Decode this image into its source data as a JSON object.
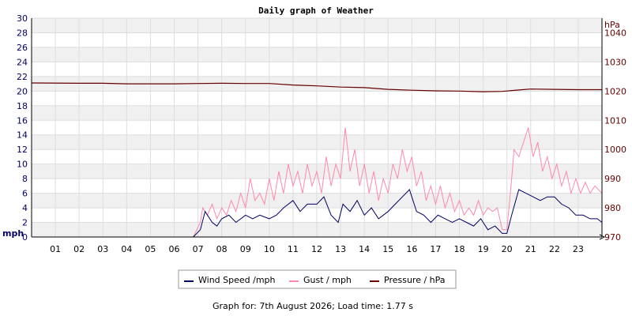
{
  "chart_data": {
    "type": "line",
    "title": "Daily graph of Weather",
    "footer": "Graph for: 7th August 2026; Load time: 1.77 s",
    "x_hours": [
      0,
      24
    ],
    "x_ticks": [
      "01",
      "02",
      "03",
      "04",
      "05",
      "06",
      "07",
      "08",
      "09",
      "10",
      "11",
      "12",
      "13",
      "14",
      "15",
      "16",
      "17",
      "18",
      "19",
      "20",
      "21",
      "22",
      "23"
    ],
    "left_axis": {
      "unit": "mph",
      "ylim": [
        0,
        30
      ],
      "ticks": [
        "0",
        "2",
        "4",
        "6",
        "8",
        "10",
        "12",
        "14",
        "16",
        "18",
        "20",
        "22",
        "24",
        "26",
        "28",
        "30"
      ]
    },
    "right_axis": {
      "unit": "hPa",
      "ylim": [
        970,
        1045
      ],
      "ticks": [
        "970",
        "980",
        "990",
        "1000",
        "1010",
        "1020",
        "1030",
        "1040"
      ]
    },
    "legend_placement": "bottom-center",
    "series": [
      {
        "name": "Wind Speed /mph",
        "color": "#000066",
        "axis": "left",
        "points": [
          [
            0,
            0
          ],
          [
            1,
            0
          ],
          [
            2,
            0
          ],
          [
            3,
            0
          ],
          [
            4,
            0
          ],
          [
            5,
            0
          ],
          [
            6,
            0
          ],
          [
            6.8,
            0
          ],
          [
            7.1,
            1
          ],
          [
            7.3,
            3.5
          ],
          [
            7.6,
            2
          ],
          [
            7.8,
            1.5
          ],
          [
            8,
            2.5
          ],
          [
            8.3,
            3
          ],
          [
            8.6,
            2
          ],
          [
            9,
            3
          ],
          [
            9.3,
            2.5
          ],
          [
            9.6,
            3
          ],
          [
            10,
            2.5
          ],
          [
            10.3,
            3
          ],
          [
            10.6,
            4
          ],
          [
            11,
            5
          ],
          [
            11.3,
            3.5
          ],
          [
            11.6,
            4.5
          ],
          [
            12,
            4.5
          ],
          [
            12.3,
            5.5
          ],
          [
            12.6,
            3
          ],
          [
            12.9,
            2
          ],
          [
            13.1,
            4.5
          ],
          [
            13.4,
            3.5
          ],
          [
            13.7,
            5
          ],
          [
            14,
            3
          ],
          [
            14.3,
            4
          ],
          [
            14.6,
            2.5
          ],
          [
            15,
            3.5
          ],
          [
            15.3,
            4.5
          ],
          [
            15.6,
            5.5
          ],
          [
            15.9,
            6.5
          ],
          [
            16.2,
            3.5
          ],
          [
            16.5,
            3
          ],
          [
            16.8,
            2
          ],
          [
            17.1,
            3
          ],
          [
            17.4,
            2.5
          ],
          [
            17.7,
            2
          ],
          [
            18,
            2.5
          ],
          [
            18.3,
            2
          ],
          [
            18.6,
            1.5
          ],
          [
            18.9,
            2.5
          ],
          [
            19.2,
            1
          ],
          [
            19.5,
            1.5
          ],
          [
            19.8,
            0.5
          ],
          [
            20,
            0.5
          ],
          [
            20.2,
            3
          ],
          [
            20.5,
            6.5
          ],
          [
            20.8,
            6
          ],
          [
            21.1,
            5.5
          ],
          [
            21.4,
            5
          ],
          [
            21.7,
            5.5
          ],
          [
            22,
            5.5
          ],
          [
            22.3,
            4.5
          ],
          [
            22.6,
            4
          ],
          [
            22.9,
            3
          ],
          [
            23.2,
            3
          ],
          [
            23.5,
            2.5
          ],
          [
            23.8,
            2.5
          ],
          [
            24,
            2
          ]
        ]
      },
      {
        "name": "Gust / mph",
        "color": "#ff88aa",
        "axis": "left",
        "points": [
          [
            0,
            0
          ],
          [
            1,
            0
          ],
          [
            2,
            0
          ],
          [
            3,
            0
          ],
          [
            4,
            0
          ],
          [
            5,
            0
          ],
          [
            6,
            0
          ],
          [
            6.8,
            0
          ],
          [
            7.1,
            2
          ],
          [
            7.2,
            4
          ],
          [
            7.4,
            3
          ],
          [
            7.6,
            4.5
          ],
          [
            7.8,
            2.5
          ],
          [
            8,
            4
          ],
          [
            8.2,
            3
          ],
          [
            8.4,
            5
          ],
          [
            8.6,
            3.5
          ],
          [
            8.8,
            6
          ],
          [
            9,
            4
          ],
          [
            9.2,
            8
          ],
          [
            9.4,
            5
          ],
          [
            9.6,
            6
          ],
          [
            9.8,
            4.5
          ],
          [
            10,
            8
          ],
          [
            10.2,
            5
          ],
          [
            10.4,
            9
          ],
          [
            10.6,
            6
          ],
          [
            10.8,
            10
          ],
          [
            11,
            7
          ],
          [
            11.2,
            9
          ],
          [
            11.4,
            6
          ],
          [
            11.6,
            10
          ],
          [
            11.8,
            7
          ],
          [
            12,
            9
          ],
          [
            12.2,
            6
          ],
          [
            12.4,
            11
          ],
          [
            12.6,
            7
          ],
          [
            12.8,
            10
          ],
          [
            13,
            8
          ],
          [
            13.2,
            15
          ],
          [
            13.4,
            9
          ],
          [
            13.6,
            12
          ],
          [
            13.8,
            7
          ],
          [
            14,
            10
          ],
          [
            14.2,
            6
          ],
          [
            14.4,
            9
          ],
          [
            14.6,
            5
          ],
          [
            14.8,
            8
          ],
          [
            15,
            6
          ],
          [
            15.2,
            10
          ],
          [
            15.4,
            8
          ],
          [
            15.6,
            12
          ],
          [
            15.8,
            9
          ],
          [
            16,
            11
          ],
          [
            16.2,
            7
          ],
          [
            16.4,
            9
          ],
          [
            16.6,
            5
          ],
          [
            16.8,
            7
          ],
          [
            17,
            4.5
          ],
          [
            17.2,
            7
          ],
          [
            17.4,
            4
          ],
          [
            17.6,
            6
          ],
          [
            17.8,
            3.5
          ],
          [
            18,
            5
          ],
          [
            18.2,
            3
          ],
          [
            18.4,
            4
          ],
          [
            18.6,
            3
          ],
          [
            18.8,
            5
          ],
          [
            19,
            3
          ],
          [
            19.2,
            4
          ],
          [
            19.4,
            3.5
          ],
          [
            19.6,
            4
          ],
          [
            19.8,
            1
          ],
          [
            20,
            1
          ],
          [
            20.2,
            8
          ],
          [
            20.3,
            12
          ],
          [
            20.5,
            11
          ],
          [
            20.7,
            13
          ],
          [
            20.9,
            15
          ],
          [
            21.1,
            11
          ],
          [
            21.3,
            13
          ],
          [
            21.5,
            9
          ],
          [
            21.7,
            11
          ],
          [
            21.9,
            8
          ],
          [
            22.1,
            10
          ],
          [
            22.3,
            7
          ],
          [
            22.5,
            9
          ],
          [
            22.7,
            6
          ],
          [
            22.9,
            8
          ],
          [
            23.1,
            6
          ],
          [
            23.3,
            7.5
          ],
          [
            23.5,
            6
          ],
          [
            23.7,
            7
          ],
          [
            24,
            6
          ]
        ]
      },
      {
        "name": "Pressure / hPa",
        "color": "#660000",
        "axis": "right",
        "points": [
          [
            0,
            1022.8
          ],
          [
            2,
            1022.7
          ],
          [
            3,
            1022.7
          ],
          [
            4,
            1022.5
          ],
          [
            5,
            1022.5
          ],
          [
            6,
            1022.5
          ],
          [
            7,
            1022.6
          ],
          [
            8,
            1022.7
          ],
          [
            9,
            1022.6
          ],
          [
            10,
            1022.6
          ],
          [
            11,
            1022.1
          ],
          [
            12,
            1021.8
          ],
          [
            13,
            1021.4
          ],
          [
            14,
            1021.2
          ],
          [
            15,
            1020.6
          ],
          [
            16,
            1020.3
          ],
          [
            17,
            1020.1
          ],
          [
            18,
            1020.0
          ],
          [
            19,
            1019.8
          ],
          [
            19.8,
            1019.9
          ],
          [
            20.5,
            1020.4
          ],
          [
            21,
            1020.7
          ],
          [
            22,
            1020.6
          ],
          [
            23,
            1020.5
          ],
          [
            24,
            1020.5
          ]
        ]
      }
    ]
  }
}
